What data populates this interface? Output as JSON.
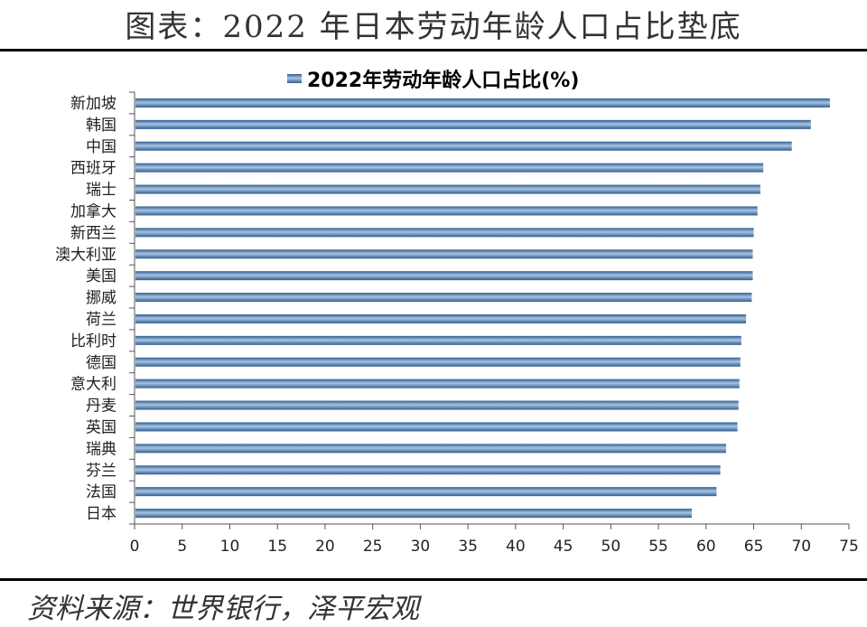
{
  "page": {
    "title": "图表：2022 年日本劳动年龄人口占比垫底",
    "source": "资料来源：世界银行，泽平宏观"
  },
  "chart_data": {
    "type": "bar",
    "orientation": "horizontal",
    "legend": {
      "label": "2022年劳动年龄人口占比(%)",
      "placement": "top-center"
    },
    "categories": [
      "新加坡",
      "韩国",
      "中国",
      "西班牙",
      "瑞士",
      "加拿大",
      "新西兰",
      "澳大利亚",
      "美国",
      "挪威",
      "荷兰",
      "比利时",
      "德国",
      "意大利",
      "丹麦",
      "英国",
      "瑞典",
      "芬兰",
      "法国",
      "日本"
    ],
    "series": [
      {
        "name": "2022年劳动年龄人口占比(%)",
        "values": [
          73.0,
          71.0,
          69.0,
          66.0,
          65.7,
          65.4,
          65.0,
          64.9,
          64.9,
          64.8,
          64.2,
          63.7,
          63.6,
          63.5,
          63.4,
          63.3,
          62.1,
          61.5,
          61.1,
          58.5
        ]
      }
    ],
    "xlim": [
      0,
      75
    ],
    "xticks": [
      "0",
      "5",
      "10",
      "15",
      "20",
      "25",
      "30",
      "35",
      "40",
      "45",
      "50",
      "55",
      "60",
      "65",
      "70",
      "75"
    ],
    "grid": false,
    "colors": {
      "bar_dark": "#2F5E8F",
      "bar_light": "#A9C4E3",
      "axis": "#555555"
    }
  }
}
